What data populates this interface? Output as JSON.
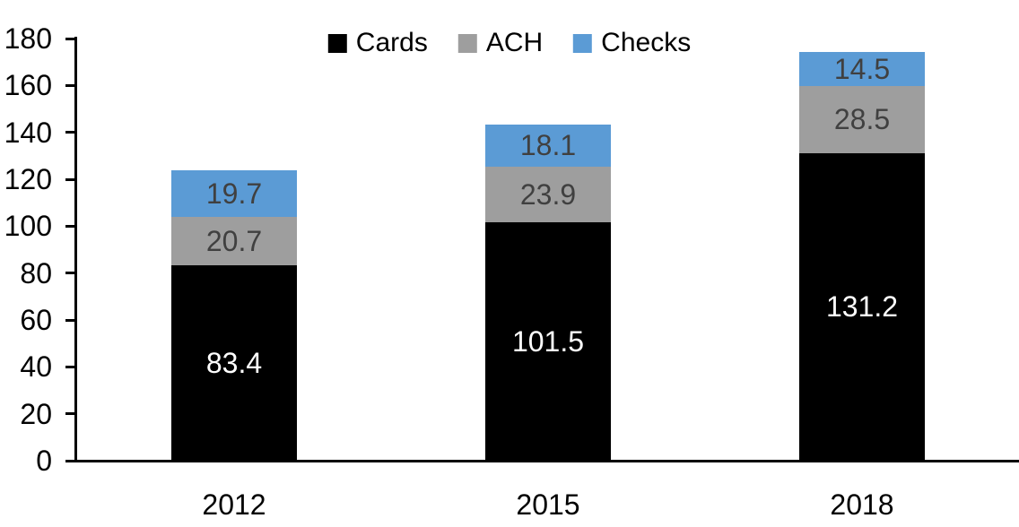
{
  "chart_data": {
    "type": "bar",
    "stacked": true,
    "title": "",
    "xlabel": "",
    "ylabel": "",
    "categories": [
      "2012",
      "2015",
      "2018"
    ],
    "series": [
      {
        "name": "Cards",
        "color": "#000000",
        "label_color": "#ffffff",
        "values": [
          83.4,
          101.5,
          131.2
        ]
      },
      {
        "name": "ACH",
        "color": "#9e9e9e",
        "label_color": "#404040",
        "values": [
          20.7,
          23.9,
          28.5
        ]
      },
      {
        "name": "Checks",
        "color": "#5b9bd5",
        "label_color": "#404040",
        "values": [
          19.7,
          18.1,
          14.5
        ]
      }
    ],
    "y_axis": {
      "min": 0,
      "max": 180,
      "step": 20,
      "tick_labels": [
        "0",
        "20",
        "40",
        "60",
        "80",
        "100",
        "120",
        "140",
        "160",
        "180"
      ]
    },
    "legend": {
      "position": "top",
      "entries": [
        "Cards",
        "ACH",
        "Checks"
      ]
    },
    "grid": false,
    "colors": {
      "axis": "#000000",
      "background": "#ffffff"
    }
  }
}
